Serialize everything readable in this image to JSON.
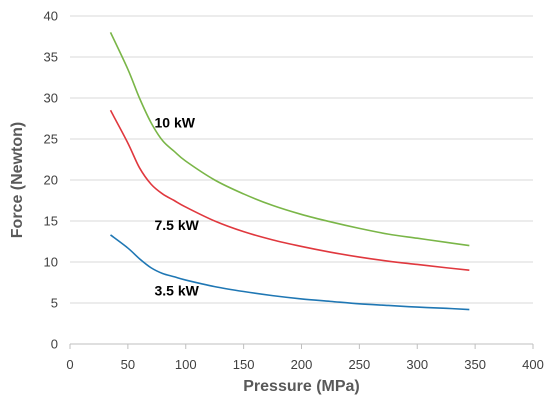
{
  "chart_data": {
    "type": "line",
    "title": "",
    "xlabel": "Pressure (MPa)",
    "ylabel": "Force (Newton)",
    "xlim": [
      0,
      400
    ],
    "ylim": [
      0,
      40
    ],
    "xticks": [
      0,
      50,
      100,
      150,
      200,
      250,
      300,
      350,
      400
    ],
    "yticks": [
      0,
      5,
      10,
      15,
      20,
      25,
      30,
      35,
      40
    ],
    "grid": "horizontal",
    "legend": "none",
    "series": [
      {
        "label": "3.5 kW",
        "color": "#1f77b4",
        "x": [
          35,
          50,
          60,
          70,
          80,
          90,
          100,
          125,
          150,
          175,
          200,
          225,
          250,
          275,
          300,
          325,
          345
        ],
        "y": [
          13.3,
          11.7,
          10.4,
          9.3,
          8.6,
          8.2,
          7.8,
          7.0,
          6.4,
          5.9,
          5.5,
          5.2,
          4.9,
          4.7,
          4.5,
          4.35,
          4.2
        ]
      },
      {
        "label": "7.5 kW",
        "color": "#e0383e",
        "x": [
          35,
          50,
          60,
          70,
          80,
          90,
          100,
          125,
          150,
          175,
          200,
          225,
          250,
          275,
          300,
          325,
          345
        ],
        "y": [
          28.5,
          24.5,
          21.5,
          19.5,
          18.3,
          17.5,
          16.7,
          15.0,
          13.7,
          12.7,
          11.9,
          11.2,
          10.6,
          10.1,
          9.7,
          9.3,
          9.0
        ]
      },
      {
        "label": "10 kW",
        "color": "#7ab648",
        "x": [
          35,
          50,
          60,
          70,
          80,
          90,
          100,
          125,
          150,
          175,
          200,
          225,
          250,
          275,
          300,
          325,
          345
        ],
        "y": [
          38.0,
          33.5,
          30.0,
          27.0,
          24.8,
          23.5,
          22.3,
          20.0,
          18.3,
          16.9,
          15.8,
          14.9,
          14.1,
          13.4,
          12.9,
          12.4,
          12.0
        ]
      }
    ],
    "annotations": [
      {
        "text": "10 kW",
        "x": 73,
        "y": 26.4
      },
      {
        "text": "7.5 kW",
        "x": 73,
        "y": 13.9
      },
      {
        "text": "3.5 kW",
        "x": 73,
        "y": 5.9
      }
    ]
  }
}
